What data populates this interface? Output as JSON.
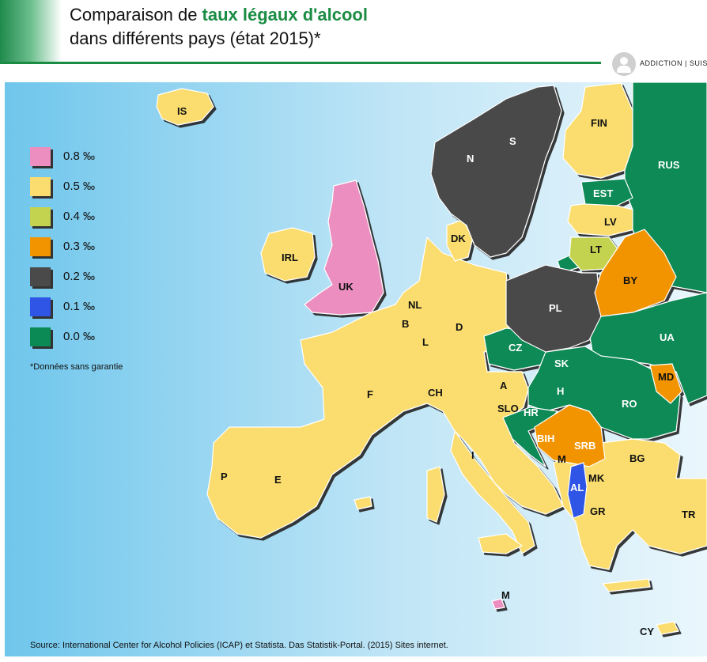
{
  "header": {
    "title_part1": "Comparaison de ",
    "title_highlight": "taux légaux d'alcool",
    "title_line2": "dans différents pays (état 2015)*",
    "brand": "ADDICTION | SUISSE"
  },
  "legend": {
    "items": [
      {
        "label": "0.8 ‰",
        "color": "#ec8fc0"
      },
      {
        "label": "0.5 ‰",
        "color": "#fadd6e"
      },
      {
        "label": "0.4 ‰",
        "color": "#c4d34f"
      },
      {
        "label": "0.3 ‰",
        "color": "#f29400"
      },
      {
        "label": "0.2 ‰",
        "color": "#4a4a4a"
      },
      {
        "label": "0.1 ‰",
        "color": "#2e55e6"
      },
      {
        "label": "0.0 ‰",
        "color": "#0b8a55"
      }
    ],
    "disclaimer": "*Données sans garantie"
  },
  "countries": {
    "IS": "IS",
    "FIN": "FIN",
    "RUS": "RUS",
    "N": "N",
    "S": "S",
    "EST": "EST",
    "LV": "LV",
    "LT": "LT",
    "DK": "DK",
    "IRL": "IRL",
    "UK": "UK",
    "BY": "BY",
    "PL": "PL",
    "NL": "NL",
    "B": "B",
    "D": "D",
    "L": "L",
    "UA": "UA",
    "CZ": "CZ",
    "SK": "SK",
    "MD": "MD",
    "F": "F",
    "CH": "CH",
    "A": "A",
    "H": "H",
    "RO": "RO",
    "SLO": "SLO",
    "HR": "HR",
    "BIH": "BIH",
    "SRB": "SRB",
    "M": "M",
    "BG": "BG",
    "I": "I",
    "P": "P",
    "E": "E",
    "MK": "MK",
    "AL": "AL",
    "GR": "GR",
    "TR": "TR",
    "M2": "M",
    "CY": "CY"
  },
  "source": "Source: International Center for Alcohol Policies (ICAP)  et Statista. Das Statistik-Portal. (2015) Sites internet."
}
